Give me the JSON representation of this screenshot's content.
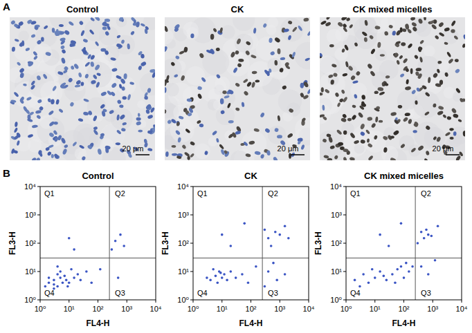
{
  "panel_a": {
    "label": "A",
    "images": [
      {
        "title": "Control",
        "scale_bar": "20 μm"
      },
      {
        "title": "CK",
        "scale_bar": "20 μm"
      },
      {
        "title": "CK mixed micelles",
        "scale_bar": "20 μm"
      }
    ]
  },
  "panel_b": {
    "label": "B"
  },
  "chart_data": [
    {
      "type": "scatter",
      "title": "Control",
      "x_label": "FL4-H",
      "y_label": "FL3-H",
      "log": true,
      "color": "#3b55c4",
      "xlim": [
        1,
        10000
      ],
      "ylim": [
        1,
        10000
      ],
      "xticks": [
        {
          "value": 1,
          "label": "10⁰"
        },
        {
          "value": 10,
          "label": "10¹"
        },
        {
          "value": 100,
          "label": "10²"
        },
        {
          "value": 1000,
          "label": "10³"
        },
        {
          "value": 10000,
          "label": "10⁴"
        }
      ],
      "yticks": [
        {
          "value": 1,
          "label": "10⁰"
        },
        {
          "value": 10,
          "label": "10¹"
        },
        {
          "value": 100,
          "label": "10²"
        },
        {
          "value": 1000,
          "label": "10³"
        },
        {
          "value": 10000,
          "label": "10⁴"
        }
      ],
      "annotations": [
        "Q1",
        "Q2",
        "Q3",
        "Q4"
      ],
      "quadrant_gate": {
        "x": 250,
        "y": 30
      },
      "x": [
        2,
        3,
        4,
        5,
        6,
        3,
        4,
        5,
        8,
        2,
        3,
        7,
        10,
        12,
        15,
        20,
        25,
        4,
        9,
        1.5,
        40,
        60,
        120,
        300,
        400,
        600,
        800,
        500,
        15,
        10
      ],
      "values": [
        4,
        5,
        3,
        6,
        4,
        2.5,
        8,
        10,
        5,
        6,
        3.5,
        7,
        4,
        12,
        6,
        8,
        5,
        15,
        3,
        3,
        10,
        4,
        12,
        60,
        120,
        200,
        80,
        6,
        60,
        150
      ]
    },
    {
      "type": "scatter",
      "title": "CK",
      "x_label": "FL4-H",
      "y_label": "FL3-H",
      "log": true,
      "color": "#3b55c4",
      "xlim": [
        1,
        10000
      ],
      "ylim": [
        1,
        10000
      ],
      "xticks": [
        {
          "value": 1,
          "label": "10⁰"
        },
        {
          "value": 10,
          "label": "10¹"
        },
        {
          "value": 100,
          "label": "10²"
        },
        {
          "value": 1000,
          "label": "10³"
        },
        {
          "value": 10000,
          "label": "10⁴"
        }
      ],
      "yticks": [
        {
          "value": 1,
          "label": "10⁰"
        },
        {
          "value": 10,
          "label": "10¹"
        },
        {
          "value": 100,
          "label": "10²"
        },
        {
          "value": 1000,
          "label": "10³"
        },
        {
          "value": 10000,
          "label": "10⁴"
        }
      ],
      "annotations": [
        "Q1",
        "Q2",
        "Q3",
        "Q4"
      ],
      "quadrant_gate": {
        "x": 250,
        "y": 30
      },
      "x": [
        4,
        6,
        8,
        10,
        5,
        7,
        12,
        15,
        3,
        9,
        20,
        30,
        50,
        80,
        150,
        400,
        800,
        1500,
        600,
        300,
        400,
        700,
        1000,
        1500,
        2000,
        500,
        300,
        20,
        10,
        60
      ],
      "values": [
        5,
        7,
        10,
        6,
        12,
        4,
        8,
        5,
        6,
        9,
        10,
        6,
        8,
        4,
        15,
        10,
        5,
        8,
        20,
        3,
        150,
        250,
        200,
        400,
        150,
        80,
        300,
        80,
        200,
        500
      ]
    },
    {
      "type": "scatter",
      "title": "CK mixed micelles",
      "x_label": "FL4-H",
      "y_label": "FL3-H",
      "log": true,
      "color": "#3b55c4",
      "xlim": [
        1,
        10000
      ],
      "ylim": [
        1,
        10000
      ],
      "xticks": [
        {
          "value": 1,
          "label": "10⁰"
        },
        {
          "value": 10,
          "label": "10¹"
        },
        {
          "value": 100,
          "label": "10²"
        },
        {
          "value": 1000,
          "label": "10³"
        },
        {
          "value": 10000,
          "label": "10⁴"
        }
      ],
      "yticks": [
        {
          "value": 1,
          "label": "10⁰"
        },
        {
          "value": 10,
          "label": "10¹"
        },
        {
          "value": 100,
          "label": "10²"
        },
        {
          "value": 1000,
          "label": "10³"
        },
        {
          "value": 10000,
          "label": "10⁴"
        }
      ],
      "annotations": [
        "Q1",
        "Q2",
        "Q3",
        "Q4"
      ],
      "quadrant_gate": {
        "x": 250,
        "y": 30
      },
      "x": [
        2,
        4,
        6,
        10,
        15,
        25,
        40,
        60,
        100,
        150,
        200,
        3,
        8,
        20,
        50,
        80,
        120,
        400,
        700,
        1200,
        300,
        500,
        700,
        400,
        900,
        600,
        1500,
        30,
        15,
        80
      ],
      "values": [
        5,
        8,
        4,
        6,
        10,
        5,
        8,
        12,
        6,
        10,
        15,
        3,
        12,
        7,
        4,
        15,
        20,
        15,
        8,
        25,
        100,
        150,
        200,
        250,
        180,
        300,
        400,
        80,
        200,
        500
      ]
    }
  ]
}
